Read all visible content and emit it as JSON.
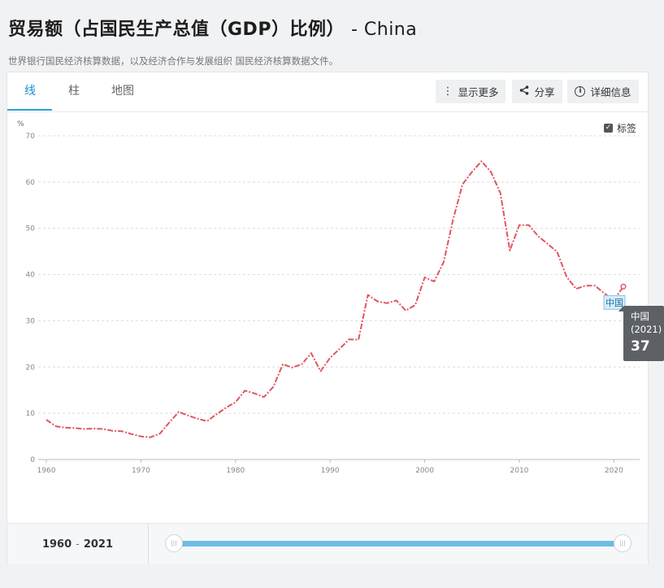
{
  "header": {
    "title": "贸易额（占国民生产总值（GDP）比例）",
    "country": "- China",
    "subtitle": "世界银行国民经济核算数据，以及经济合作与发展组织 国民经济核算数据文件。"
  },
  "tabs": [
    {
      "label": "线",
      "active": true
    },
    {
      "label": "柱",
      "active": false
    },
    {
      "label": "地图",
      "active": false
    }
  ],
  "toolbar": {
    "more_label": "显示更多",
    "share_label": "分享",
    "details_label": "详细信息"
  },
  "legend": {
    "label_toggle": "标签",
    "checked": true
  },
  "range": {
    "start": "1960",
    "sep": "-",
    "end": "2021"
  },
  "tooltip": {
    "country": "中国",
    "year": "(2021)",
    "value": "37"
  },
  "colors": {
    "line": "#e0575f",
    "accent": "#2aa1de",
    "slider": "#6dbde4"
  },
  "chart_data": {
    "type": "line",
    "ylabel": "%",
    "ylim": [
      0,
      70
    ],
    "yticks": [
      0,
      10,
      20,
      30,
      40,
      50,
      60,
      70
    ],
    "xlim": [
      1960,
      2021
    ],
    "xticks": [
      1960,
      1970,
      1980,
      1990,
      2000,
      2010,
      2020
    ],
    "grid": true,
    "series": [
      {
        "name": "中国",
        "x": [
          1960,
          1961,
          1962,
          1963,
          1964,
          1965,
          1966,
          1967,
          1968,
          1969,
          1970,
          1971,
          1972,
          1973,
          1974,
          1975,
          1976,
          1977,
          1978,
          1979,
          1980,
          1981,
          1982,
          1983,
          1984,
          1985,
          1986,
          1987,
          1988,
          1989,
          1990,
          1991,
          1992,
          1993,
          1994,
          1995,
          1996,
          1997,
          1998,
          1999,
          2000,
          2001,
          2002,
          2003,
          2004,
          2005,
          2006,
          2007,
          2008,
          2009,
          2010,
          2011,
          2012,
          2013,
          2014,
          2015,
          2016,
          2017,
          2018,
          2019,
          2020,
          2021
        ],
        "y": [
          8.6,
          7.2,
          6.9,
          6.8,
          6.6,
          6.7,
          6.6,
          6.2,
          6.1,
          5.5,
          5.0,
          4.8,
          5.6,
          8.0,
          10.3,
          9.5,
          8.8,
          8.3,
          9.8,
          11.2,
          12.4,
          14.9,
          14.3,
          13.5,
          15.7,
          20.6,
          19.9,
          20.6,
          23.0,
          19.1,
          22.0,
          23.9,
          26.0,
          25.9,
          35.6,
          34.2,
          33.8,
          34.4,
          32.2,
          33.4,
          39.4,
          38.5,
          42.7,
          51.9,
          59.5,
          62.2,
          64.5,
          62.2,
          57.6,
          45.2,
          50.7,
          50.7,
          48.3,
          46.6,
          44.9,
          39.5,
          36.9,
          37.6,
          37.6,
          35.9,
          34.5,
          37.4
        ]
      }
    ]
  }
}
